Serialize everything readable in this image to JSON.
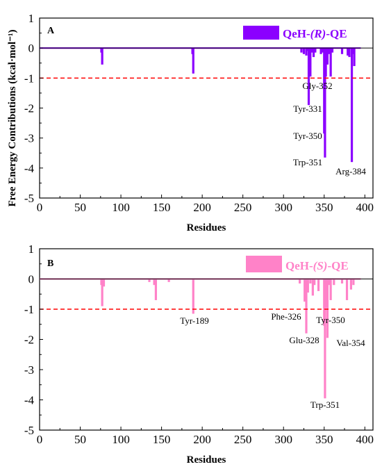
{
  "ylabel": "Free Energy Contributions (kcal·mol⁻¹)",
  "chart_data": [
    {
      "panel": "A",
      "type": "bar",
      "xlabel": "Residues",
      "xlim": [
        0,
        410
      ],
      "ylim": [
        -5,
        1
      ],
      "xticks": [
        0,
        50,
        100,
        150,
        200,
        250,
        300,
        350,
        400
      ],
      "yticks": [
        1,
        0,
        -1,
        -2,
        -3,
        -4,
        -5
      ],
      "reference_line": -1,
      "color": "#8B00FF",
      "legend": {
        "prefix": "QeH-",
        "italic": "(R)",
        "suffix": "-QE"
      },
      "bars": [
        {
          "x": 76,
          "y": -0.15
        },
        {
          "x": 77,
          "y": -0.55
        },
        {
          "x": 188,
          "y": -0.2
        },
        {
          "x": 189,
          "y": -0.85
        },
        {
          "x": 322,
          "y": -0.15
        },
        {
          "x": 325,
          "y": -0.2
        },
        {
          "x": 328,
          "y": -0.25
        },
        {
          "x": 329,
          "y": -0.1
        },
        {
          "x": 331,
          "y": -1.9
        },
        {
          "x": 333,
          "y": -0.95
        },
        {
          "x": 335,
          "y": -0.15
        },
        {
          "x": 337,
          "y": -0.3
        },
        {
          "x": 339,
          "y": -0.15
        },
        {
          "x": 346,
          "y": -0.2
        },
        {
          "x": 348,
          "y": -0.15
        },
        {
          "x": 350,
          "y": -2.85
        },
        {
          "x": 351,
          "y": -3.65
        },
        {
          "x": 352,
          "y": -0.95
        },
        {
          "x": 354,
          "y": -0.55
        },
        {
          "x": 356,
          "y": -0.2
        },
        {
          "x": 358,
          "y": -0.95
        },
        {
          "x": 360,
          "y": -0.15
        },
        {
          "x": 372,
          "y": -0.2
        },
        {
          "x": 379,
          "y": -0.25
        },
        {
          "x": 381,
          "y": -0.3
        },
        {
          "x": 384,
          "y": -3.8
        },
        {
          "x": 386,
          "y": -0.2
        },
        {
          "x": 387,
          "y": -0.6
        }
      ],
      "annotations": [
        {
          "text": "Gly-352",
          "x": 352,
          "y": -0.95
        },
        {
          "text": "Tyr-331",
          "x": 331,
          "y": -1.9
        },
        {
          "text": "Tyr-350",
          "x": 350,
          "y": -2.85
        },
        {
          "text": "Trp-351",
          "x": 351,
          "y": -3.65
        },
        {
          "text": "Arg-384",
          "x": 384,
          "y": -3.8
        }
      ]
    },
    {
      "panel": "B",
      "type": "bar",
      "xlabel": "Residues",
      "xlim": [
        0,
        410
      ],
      "ylim": [
        -5,
        1
      ],
      "xticks": [
        0,
        50,
        100,
        150,
        200,
        250,
        300,
        350,
        400
      ],
      "yticks": [
        1,
        0,
        -1,
        -2,
        -3,
        -4,
        -5
      ],
      "reference_line": -1,
      "color": "#FF82C8",
      "legend": {
        "prefix": "QeH-",
        "italic": "(S)",
        "suffix": "-QE"
      },
      "bars": [
        {
          "x": 76,
          "y": -0.2
        },
        {
          "x": 77,
          "y": -0.9
        },
        {
          "x": 79,
          "y": -0.25
        },
        {
          "x": 135,
          "y": -0.1
        },
        {
          "x": 141,
          "y": -0.2
        },
        {
          "x": 143,
          "y": -0.7
        },
        {
          "x": 159,
          "y": -0.1
        },
        {
          "x": 189,
          "y": -1.15
        },
        {
          "x": 320,
          "y": -0.15
        },
        {
          "x": 326,
          "y": -0.75
        },
        {
          "x": 328,
          "y": -1.8
        },
        {
          "x": 330,
          "y": -0.45
        },
        {
          "x": 333,
          "y": -0.15
        },
        {
          "x": 336,
          "y": -0.55
        },
        {
          "x": 338,
          "y": -0.2
        },
        {
          "x": 343,
          "y": -0.4
        },
        {
          "x": 350,
          "y": -1.55
        },
        {
          "x": 351,
          "y": -3.95
        },
        {
          "x": 352,
          "y": -0.95
        },
        {
          "x": 354,
          "y": -1.95
        },
        {
          "x": 356,
          "y": -0.2
        },
        {
          "x": 358,
          "y": -0.7
        },
        {
          "x": 362,
          "y": -0.2
        },
        {
          "x": 372,
          "y": -0.15
        },
        {
          "x": 378,
          "y": -0.7
        },
        {
          "x": 383,
          "y": -0.35
        },
        {
          "x": 386,
          "y": -0.2
        }
      ],
      "annotations": [
        {
          "text": "Tyr-189",
          "x": 189,
          "y": -1.15
        },
        {
          "text": "Phe-326",
          "x": 326,
          "y": -0.75
        },
        {
          "text": "Tyr-350",
          "x": 350,
          "y": -1.55
        },
        {
          "text": "Glu-328",
          "x": 328,
          "y": -1.8
        },
        {
          "text": "Val-354",
          "x": 354,
          "y": -1.95
        },
        {
          "text": "Trp-351",
          "x": 351,
          "y": -3.95
        }
      ]
    }
  ]
}
